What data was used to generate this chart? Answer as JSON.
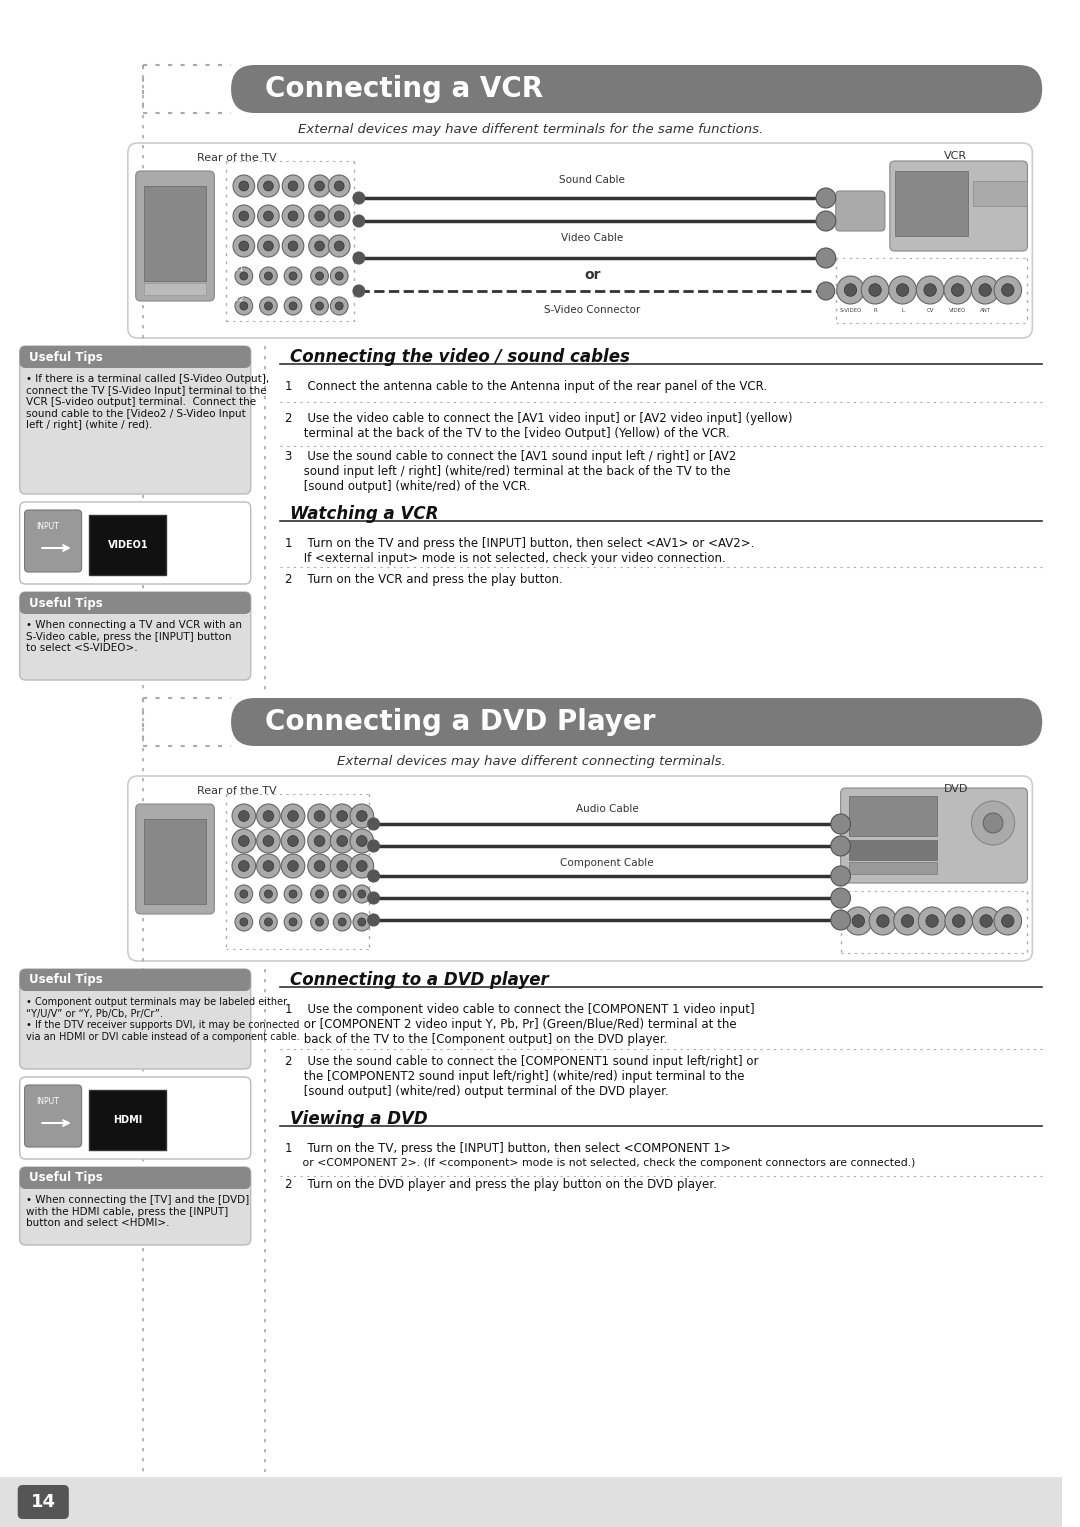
{
  "page_bg": "#ffffff",
  "header_bg": "#7a7a7a",
  "header_text_color": "#ffffff",
  "tip_box_bg": "#dddddd",
  "tip_header_bg": "#888888",
  "body_text_color": "#111111",
  "page_number": "14",
  "vcr_title": "Connecting a VCR",
  "vcr_subtitle": "External devices may have different terminals for the same functions.",
  "vcr_tip1_header": "Useful Tips",
  "vcr_tip1_body": "• If there is a terminal called [S-Video Output],\nconnect the TV [S-Video Input] terminal to the\nVCR [S-video output] terminal.  Connect the\nsound cable to the [Video2 / S-Video Input\nleft / right] (white / red).",
  "vcr_tip2_header": "Useful Tips",
  "vcr_tip2_body": "• When connecting a TV and VCR with an\nS-Video cable, press the [INPUT] button\nto select <S-VIDEO>.",
  "vcr_diagram_rear": "Rear of the TV",
  "vcr_diagram_vcr": "VCR",
  "vcr_diagram_sound": "Sound Cable",
  "vcr_diagram_video": "Video Cable",
  "vcr_diagram_or": "or",
  "vcr_diagram_svideo": "S-Video Connector",
  "vcr_sec1_title": "Connecting the video / sound cables",
  "vcr_step1": "1    Connect the antenna cable to the Antenna input of the rear panel of the VCR.",
  "vcr_step2": "2    Use the video cable to connect the [AV1 video input] or [AV2 video input] (yellow)\n     terminal at the back of the TV to the [video Output] (Yellow) of the VCR.",
  "vcr_step3": "3    Use the sound cable to connect the [AV1 sound input left / right] or [AV2\n     sound input left / right] (white/red) terminal at the back of the TV to the\n     [sound output] (white/red) of the VCR.",
  "vcr_sec2_title": "Watching a VCR",
  "vcr_watch1": "1    Turn on the TV and press the [INPUT] button, then select <AV1> or <AV2>.\n     If <external input> mode is not selected, check your video connection.",
  "vcr_watch2": "2    Turn on the VCR and press the play button.",
  "video1_label": "VIDEO1",
  "dvd_title": "Connecting a DVD Player",
  "dvd_subtitle": "External devices may have different connecting terminals.",
  "dvd_tip1_header": "Useful Tips",
  "dvd_tip1_body": "• Component output terminals may be labeled either\n“Y/U/V” or “Y, Pb/Cb, Pr/Cr”.\n• If the DTV receiver supports DVI, it may be connected\nvia an HDMI or DVI cable instead of a component cable.",
  "dvd_tip2_header": "Useful Tips",
  "dvd_tip2_body": "• When connecting the [TV] and the [DVD]\nwith the HDMI cable, press the [INPUT]\nbutton and select <HDMI>.",
  "dvd_diagram_rear": "Rear of the TV",
  "dvd_diagram_dvd": "DVD",
  "dvd_diagram_audio": "Audio Cable",
  "dvd_diagram_comp": "Component Cable",
  "dvd_sec1_title": "Connecting to a DVD player",
  "dvd_step1": "1    Use the component video cable to connect the [COMPONENT 1 video input]\n     or [COMPONENT 2 video input Y, Pb, Pr] (Green/Blue/Red) terminal at the\n     back of the TV to the [Component output] on the DVD player.",
  "dvd_step2": "2    Use the sound cable to connect the [COMPONENT1 sound input left/right] or\n     the [COMPONENT2 sound input left/right] (white/red) input terminal to the\n     [sound output] (white/red) output terminal of the DVD player.",
  "dvd_sec2_title": "Viewing a DVD",
  "dvd_view1a": "1    Turn on the TV, press the [INPUT] button, then select <COMPONENT 1>",
  "dvd_view1b": "     or <COMPONENT 2>. (If <component> mode is not selected, check the component connectors are connected.)",
  "dvd_view2": "2    Turn on the DVD player and press the play button on the DVD player.",
  "hdmi_label": "HDMI"
}
